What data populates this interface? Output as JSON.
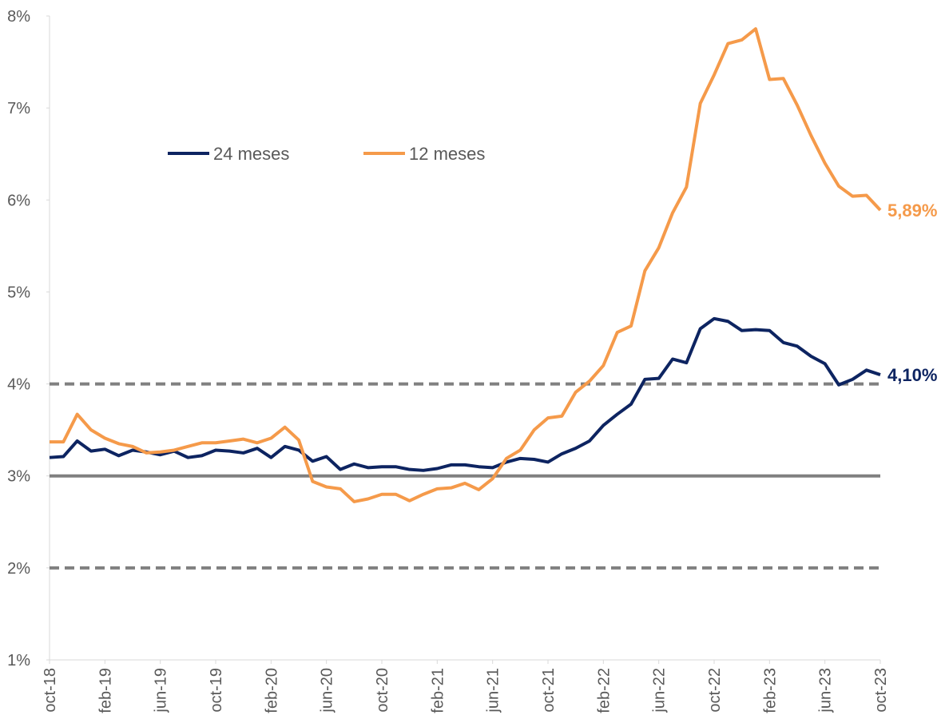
{
  "chart_data": {
    "type": "line",
    "categories": [
      "oct-18",
      null,
      null,
      null,
      "feb-19",
      null,
      null,
      null,
      "jun-19",
      null,
      null,
      null,
      "oct-19",
      null,
      null,
      null,
      "feb-20",
      null,
      null,
      null,
      "jun-20",
      null,
      null,
      null,
      "oct-20",
      null,
      null,
      null,
      "feb-21",
      null,
      null,
      null,
      "jun-21",
      null,
      null,
      null,
      "oct-21",
      null,
      null,
      null,
      "feb-22",
      null,
      null,
      null,
      "jun-22",
      null,
      null,
      null,
      "oct-22",
      null,
      null,
      null,
      "feb-23",
      null,
      null,
      null,
      "jun-23",
      null,
      null,
      null,
      "oct-23"
    ],
    "series": [
      {
        "name": "24 meses",
        "color": "#0d2461",
        "values": [
          3.2,
          3.21,
          3.38,
          3.27,
          3.29,
          3.22,
          3.28,
          3.26,
          3.23,
          3.27,
          3.2,
          3.22,
          3.28,
          3.27,
          3.25,
          3.3,
          3.2,
          3.32,
          3.28,
          3.16,
          3.21,
          3.07,
          3.13,
          3.09,
          3.1,
          3.1,
          3.07,
          3.06,
          3.08,
          3.12,
          3.12,
          3.1,
          3.09,
          3.15,
          3.19,
          3.18,
          3.15,
          3.24,
          3.3,
          3.38,
          3.55,
          3.67,
          3.78,
          4.05,
          4.06,
          4.27,
          4.23,
          4.6,
          4.71,
          4.68,
          4.58,
          4.59,
          4.58,
          4.45,
          4.41,
          4.3,
          4.22,
          3.99,
          4.05,
          4.15,
          4.1
        ],
        "value_labels": [
          null,
          null,
          null,
          null,
          null,
          null,
          null,
          null,
          null,
          null,
          null,
          null,
          null,
          null,
          null,
          null,
          null,
          null,
          null,
          null,
          null,
          null,
          null,
          null,
          null,
          null,
          null,
          null,
          null,
          null,
          null,
          null,
          null,
          null,
          null,
          null,
          null,
          null,
          null,
          null,
          null,
          null,
          null,
          null,
          null,
          null,
          null,
          null,
          null,
          null,
          null,
          null,
          null,
          null,
          null,
          null,
          null,
          null,
          null,
          null,
          "4,10%"
        ]
      },
      {
        "name": "12 meses",
        "color": "#f59a4a",
        "values": [
          3.37,
          3.37,
          3.67,
          3.5,
          3.41,
          3.35,
          3.32,
          3.25,
          3.26,
          3.28,
          3.32,
          3.36,
          3.36,
          3.38,
          3.4,
          3.36,
          3.41,
          3.53,
          3.39,
          2.94,
          2.88,
          2.86,
          2.72,
          2.75,
          2.8,
          2.8,
          2.73,
          2.8,
          2.86,
          2.87,
          2.92,
          2.85,
          2.97,
          3.19,
          3.28,
          3.5,
          3.63,
          3.65,
          3.91,
          4.03,
          4.2,
          4.56,
          4.63,
          5.23,
          5.48,
          5.86,
          6.14,
          7.05,
          7.36,
          7.7,
          7.74,
          7.86,
          7.31,
          7.32,
          7.03,
          6.7,
          6.4,
          6.15,
          6.04,
          6.05,
          5.89
        ],
        "value_labels": [
          null,
          null,
          null,
          null,
          null,
          null,
          null,
          null,
          null,
          null,
          null,
          null,
          null,
          null,
          null,
          null,
          null,
          null,
          null,
          null,
          null,
          null,
          null,
          null,
          null,
          null,
          null,
          null,
          null,
          null,
          null,
          null,
          null,
          null,
          null,
          null,
          null,
          null,
          null,
          null,
          null,
          null,
          null,
          null,
          null,
          null,
          null,
          null,
          null,
          null,
          null,
          null,
          null,
          null,
          null,
          null,
          null,
          null,
          null,
          null,
          "5,89%"
        ]
      }
    ],
    "ylim": [
      1,
      8
    ],
    "yticks": [
      {
        "value": 1,
        "label": "1%"
      },
      {
        "value": 2,
        "label": "2%"
      },
      {
        "value": 3,
        "label": "3%"
      },
      {
        "value": 4,
        "label": "4%"
      },
      {
        "value": 5,
        "label": "5%"
      },
      {
        "value": 6,
        "label": "6%"
      },
      {
        "value": 7,
        "label": "7%"
      },
      {
        "value": 8,
        "label": "8%"
      }
    ],
    "reference_lines": [
      {
        "value": 3,
        "style": "solid",
        "color": "#808080"
      },
      {
        "value": 4,
        "style": "dashed",
        "color": "#808080"
      },
      {
        "value": 2,
        "style": "dashed",
        "color": "#808080"
      }
    ],
    "grid": false,
    "legend": "top-left"
  }
}
